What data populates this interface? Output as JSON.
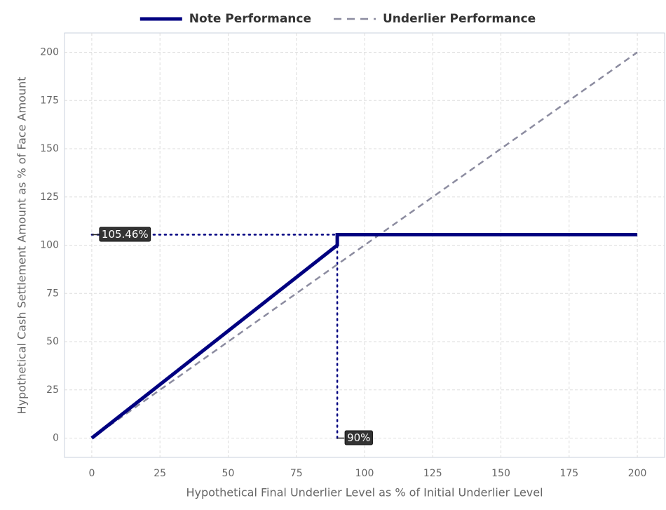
{
  "chart_data": {
    "type": "line",
    "x_label": "Hypothetical Final Underlier Level as % of Initial Underlier Level",
    "y_label": "Hypothetical Cash Settlement Amount as % of Face Amount",
    "series": [
      {
        "name": "Note Performance",
        "color": "#000080",
        "style": "solid",
        "x": [
          0,
          90,
          90,
          200
        ],
        "values": [
          0,
          100,
          105.46,
          105.46
        ]
      },
      {
        "name": "Underlier Performance",
        "color": "#8c8ca0",
        "style": "dashed",
        "x": [
          0,
          200
        ],
        "values": [
          0,
          200
        ]
      }
    ],
    "annotations": [
      {
        "label": "105.46%",
        "value": 105.46,
        "axis": "y"
      },
      {
        "label": "90%",
        "value": 90,
        "axis": "x"
      }
    ],
    "xlim": [
      -10,
      210
    ],
    "ylim": [
      -10,
      210
    ],
    "xticks": [
      0,
      25,
      50,
      75,
      100,
      125,
      150,
      175,
      200
    ],
    "yticks": [
      0,
      25,
      50,
      75,
      100,
      125,
      150,
      175,
      200
    ],
    "grid": true,
    "legend": "top"
  }
}
